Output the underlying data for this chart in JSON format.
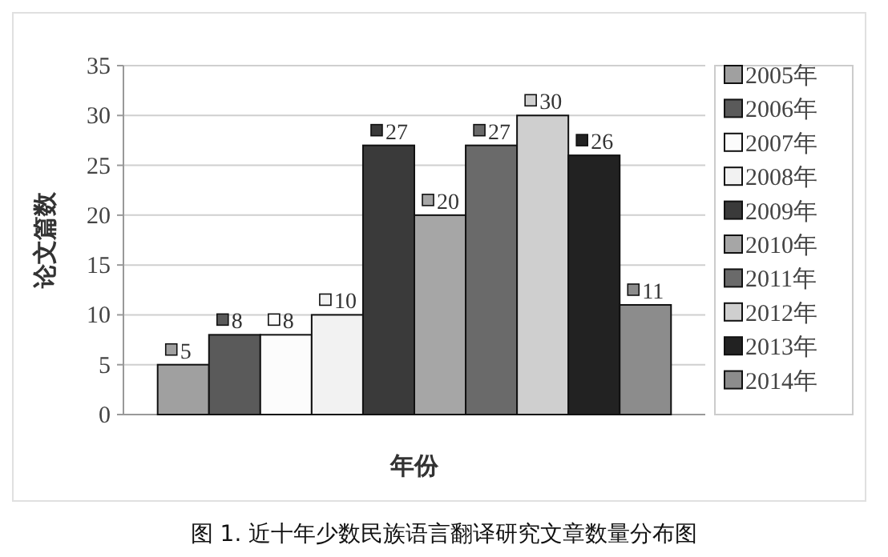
{
  "chart_data": {
    "type": "bar",
    "xlabel": "年份",
    "ylabel": "论文篇数",
    "categories": [
      null
    ],
    "series": [
      {
        "name": "2005年",
        "color": "#a0a0a0",
        "values": [
          5
        ]
      },
      {
        "name": "2006年",
        "color": "#5a5a5a",
        "values": [
          8
        ]
      },
      {
        "name": "2007年",
        "color": "#fcfcfc",
        "values": [
          8
        ]
      },
      {
        "name": "2008年",
        "color": "#f2f2f2",
        "values": [
          10
        ]
      },
      {
        "name": "2009年",
        "color": "#3a3a3a",
        "values": [
          27
        ]
      },
      {
        "name": "2010年",
        "color": "#a6a6a6",
        "values": [
          20
        ]
      },
      {
        "name": "2011年",
        "color": "#6a6a6a",
        "values": [
          27
        ]
      },
      {
        "name": "2012年",
        "color": "#cfcfcf",
        "values": [
          30
        ]
      },
      {
        "name": "2013年",
        "color": "#222222",
        "values": [
          26
        ]
      },
      {
        "name": "2014年",
        "color": "#8c8c8c",
        "values": [
          11
        ]
      }
    ],
    "ylim": [
      0,
      35
    ],
    "yticks": [
      0,
      5,
      10,
      15,
      20,
      25,
      30,
      35
    ],
    "grid": "y",
    "legend": "right",
    "data_labels": true,
    "annotations": [
      "图 1. 近十年少数民族语言翻译研究文章数量分布图"
    ]
  }
}
